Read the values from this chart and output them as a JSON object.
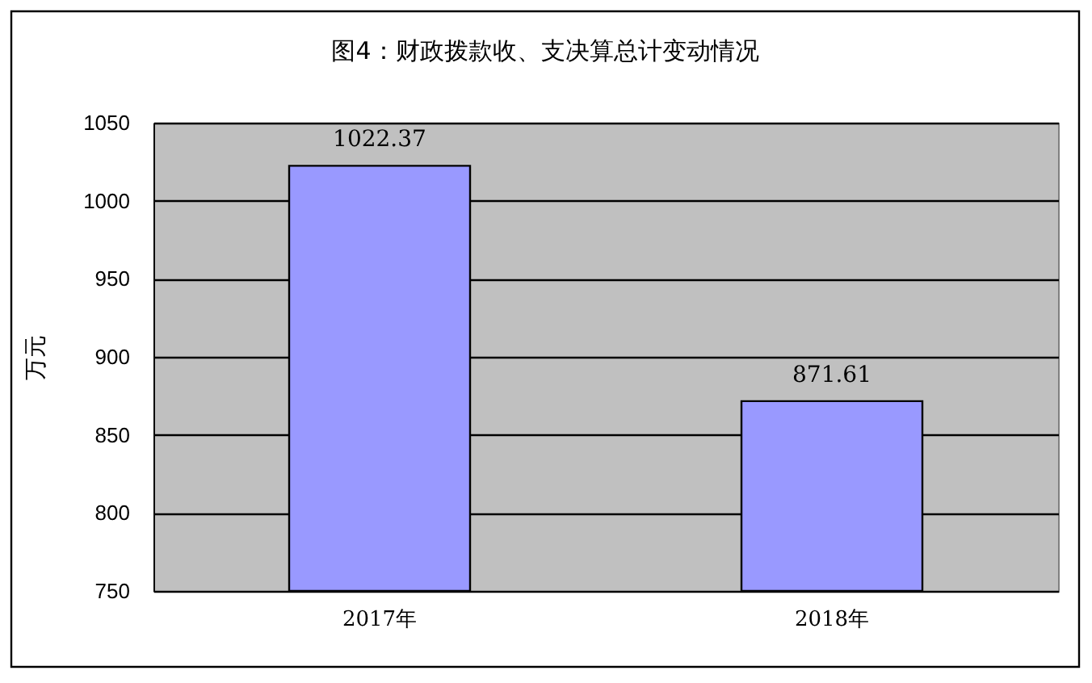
{
  "chart_data": {
    "type": "bar",
    "title": "图4：财政拨款收、支决算总计变动情况",
    "ylabel": "万元",
    "categories": [
      "2017年",
      "2018年"
    ],
    "values": [
      1022.37,
      871.61
    ],
    "color": "#9999ff",
    "ylim": [
      750,
      1050
    ],
    "yticks": [
      750,
      800,
      850,
      900,
      950,
      1000,
      1050
    ],
    "grid": "y",
    "data_labels": true
  }
}
